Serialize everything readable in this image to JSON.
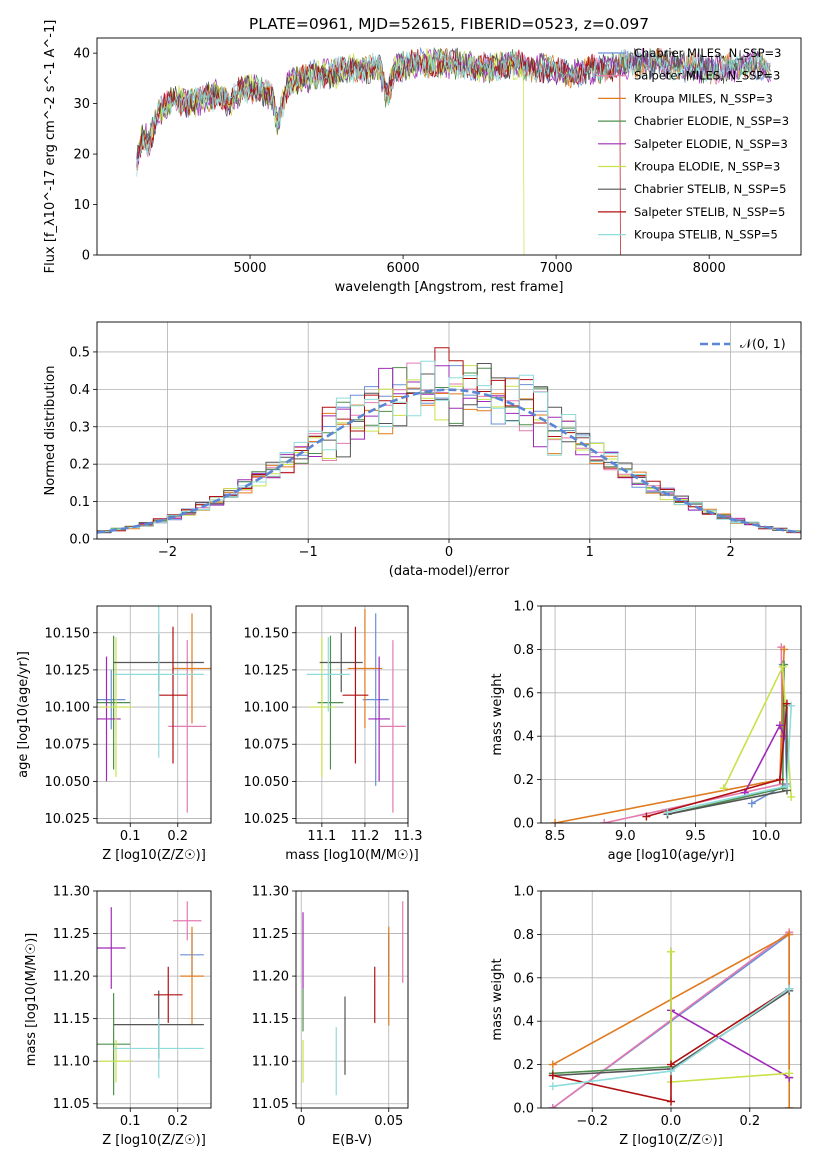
{
  "figure_title": "PLATE=0961, MJD=52615, FIBERID=0523, z=0.097",
  "series_colors": {
    "Chabrier MILES": "#6b8fd6",
    "Salpeter MILES": "#e57ab0",
    "Kroupa MILES": "#e07b1f",
    "Chabrier ELODIE": "#4f8f4f",
    "Salpeter ELODIE": "#a02ab8",
    "Kroupa ELODIE": "#c9e24a",
    "Chabrier STELIB": "#555555",
    "Salpeter STELIB": "#b01010",
    "Kroupa STELIB": "#8fdcdc"
  },
  "chart_data": [
    {
      "id": "spectrum",
      "type": "line",
      "title": "PLATE=0961, MJD=52615, FIBERID=0523, z=0.097",
      "xlabel": "wavelength [Angstrom, rest frame]",
      "ylabel": "Flux [f_λ10^-17 erg cm^-2 s^-1 A^-1]",
      "xlim": [
        4000,
        8600
      ],
      "ylim": [
        0,
        43
      ],
      "xticks": [
        5000,
        6000,
        7000,
        8000
      ],
      "yticks": [
        0,
        10,
        20,
        30,
        40
      ],
      "grid": false,
      "legend_position": "upper right",
      "legend": [
        "Chabrier MILES, N_SSP=3",
        "Salpeter MILES, N_SSP=3",
        "Kroupa MILES, N_SSP=3",
        "Chabrier ELODIE, N_SSP=3",
        "Salpeter ELODIE, N_SSP=3",
        "Kroupa ELODIE, N_SSP=3",
        "Chabrier STELIB, N_SSP=5",
        "Salpeter STELIB, N_SSP=5",
        "Kroupa STELIB, N_SSP=5"
      ],
      "continuum_points": [
        [
          4260,
          18
        ],
        [
          4300,
          24
        ],
        [
          4340,
          22
        ],
        [
          4400,
          28
        ],
        [
          4500,
          31
        ],
        [
          4600,
          30
        ],
        [
          4700,
          31
        ],
        [
          4800,
          32
        ],
        [
          4862,
          30
        ],
        [
          4950,
          33
        ],
        [
          5050,
          33
        ],
        [
          5150,
          31
        ],
        [
          5175,
          26
        ],
        [
          5250,
          34
        ],
        [
          5350,
          35
        ],
        [
          5450,
          36
        ],
        [
          5550,
          36
        ],
        [
          5650,
          37
        ],
        [
          5750,
          37
        ],
        [
          5850,
          37
        ],
        [
          5893,
          31
        ],
        [
          5950,
          37
        ],
        [
          6100,
          38
        ],
        [
          6300,
          38
        ],
        [
          6563,
          37
        ],
        [
          6700,
          38
        ],
        [
          6900,
          37
        ],
        [
          7100,
          36
        ],
        [
          7300,
          37
        ],
        [
          7500,
          38
        ],
        [
          7700,
          38
        ],
        [
          7900,
          37
        ],
        [
          8100,
          37
        ],
        [
          8300,
          38
        ],
        [
          8400,
          36
        ]
      ],
      "dropouts": [
        {
          "series": "Kroupa ELODIE",
          "x": 6790
        },
        {
          "series": "Salpeter STELIB",
          "x": 7420
        }
      ]
    },
    {
      "id": "residuals",
      "type": "histogram",
      "xlabel": "(data-model)/error",
      "ylabel": "Normed distribution",
      "xlim": [
        -2.5,
        2.5
      ],
      "ylim": [
        0,
        0.58
      ],
      "xticks": [
        -2,
        -1,
        0,
        1,
        2
      ],
      "yticks": [
        0.0,
        0.1,
        0.2,
        0.3,
        0.4,
        0.5
      ],
      "grid": true,
      "legend_position": "upper right",
      "legend": [
        "𝒩(0, 1)"
      ],
      "bin_width": 0.1,
      "reference": "gaussian mean 0 sigma 1"
    },
    {
      "id": "age-vs-Z",
      "type": "errorbar",
      "xlabel": "Z [log10(Z/Z☉)]",
      "ylabel": "age [log10(age/yr)]",
      "xlim": [
        0.03,
        0.27
      ],
      "ylim": [
        10.022,
        10.168
      ],
      "xticks": [
        0.1,
        0.2
      ],
      "yticks": [
        10.025,
        10.05,
        10.075,
        10.1,
        10.125,
        10.15
      ],
      "grid": true,
      "points": [
        {
          "series": "Chabrier MILES",
          "x": 0.06,
          "y": 10.105,
          "xerr": 0.03,
          "yerr": 0.02
        },
        {
          "series": "Salpeter MILES",
          "x": 0.22,
          "y": 10.087,
          "xerr": 0.04,
          "yerr": 0.058
        },
        {
          "series": "Kroupa MILES",
          "x": 0.23,
          "y": 10.126,
          "xerr": 0.04,
          "yerr": 0.037
        },
        {
          "series": "Chabrier ELODIE",
          "x": 0.065,
          "y": 10.103,
          "xerr": 0.035,
          "yerr": 0.045
        },
        {
          "series": "Salpeter ELODIE",
          "x": 0.05,
          "y": 10.092,
          "xerr": 0.03,
          "yerr": 0.042
        },
        {
          "series": "Kroupa ELODIE",
          "x": 0.07,
          "y": 10.1,
          "xerr": 0.035,
          "yerr": 0.047
        },
        {
          "series": "Chabrier STELIB",
          "x": 0.16,
          "y": 10.13,
          "xerr": 0.095,
          "yerr": 0.019
        },
        {
          "series": "Salpeter STELIB",
          "x": 0.19,
          "y": 10.108,
          "xerr": 0.03,
          "yerr": 0.046
        },
        {
          "series": "Kroupa STELIB",
          "x": 0.16,
          "y": 10.122,
          "xerr": 0.095,
          "yerr": 0.056
        }
      ]
    },
    {
      "id": "age-vs-mass",
      "type": "errorbar",
      "xlabel": "mass [log10(M/M☉)]",
      "ylabel": "",
      "xlim": [
        11.04,
        11.3
      ],
      "ylim": [
        10.022,
        10.168
      ],
      "xticks": [
        11.1,
        11.2,
        11.3
      ],
      "yticks": [
        10.025,
        10.05,
        10.075,
        10.1,
        10.125,
        10.15
      ],
      "grid": true,
      "points": [
        {
          "series": "Chabrier MILES",
          "x": 11.225,
          "y": 10.105,
          "xerr": 0.03,
          "yerr": 0.058
        },
        {
          "series": "Salpeter MILES",
          "x": 11.265,
          "y": 10.087,
          "xerr": 0.03,
          "yerr": 0.058
        },
        {
          "series": "Kroupa MILES",
          "x": 11.2,
          "y": 10.126,
          "xerr": 0.04,
          "yerr": 0.04
        },
        {
          "series": "Chabrier ELODIE",
          "x": 11.12,
          "y": 10.103,
          "xerr": 0.03,
          "yerr": 0.045
        },
        {
          "series": "Salpeter ELODIE",
          "x": 11.233,
          "y": 10.092,
          "xerr": 0.025,
          "yerr": 0.042
        },
        {
          "series": "Kroupa ELODIE",
          "x": 11.1,
          "y": 10.1,
          "xerr": 0.03,
          "yerr": 0.047
        },
        {
          "series": "Chabrier STELIB",
          "x": 11.145,
          "y": 10.13,
          "xerr": 0.05,
          "yerr": 0.02
        },
        {
          "series": "Salpeter STELIB",
          "x": 11.178,
          "y": 10.108,
          "xerr": 0.03,
          "yerr": 0.046
        },
        {
          "series": "Kroupa STELIB",
          "x": 11.115,
          "y": 10.122,
          "xerr": 0.05,
          "yerr": 0.025
        }
      ]
    },
    {
      "id": "weight-vs-age",
      "type": "line",
      "xlabel": "age [log10(age/yr)]",
      "ylabel": "mass weight",
      "xlim": [
        8.4,
        10.25
      ],
      "ylim": [
        0,
        1
      ],
      "xticks": [
        8.5,
        9.0,
        9.5,
        10.0
      ],
      "yticks": [
        0.0,
        0.2,
        0.4,
        0.6,
        0.8,
        1.0
      ],
      "grid": true,
      "series": [
        {
          "name": "Chabrier MILES",
          "points": [
            [
              9.9,
              0.09
            ],
            [
              10.15,
              0.18
            ],
            [
              10.12,
              0.73
            ]
          ]
        },
        {
          "name": "Salpeter MILES",
          "points": [
            [
              8.85,
              0.0
            ],
            [
              10.12,
              0.18
            ],
            [
              10.11,
              0.81
            ]
          ]
        },
        {
          "name": "Kroupa MILES",
          "points": [
            [
              8.5,
              0.0
            ],
            [
              10.1,
              0.2
            ],
            [
              10.13,
              0.8
            ]
          ]
        },
        {
          "name": "Chabrier ELODIE",
          "points": [
            [
              9.3,
              0.04
            ],
            [
              10.12,
              0.16
            ],
            [
              10.13,
              0.73
            ]
          ]
        },
        {
          "name": "Salpeter ELODIE",
          "points": [
            [
              9.85,
              0.14
            ],
            [
              10.1,
              0.45
            ],
            [
              10.13,
              0.4
            ]
          ]
        },
        {
          "name": "Kroupa ELODIE",
          "points": [
            [
              9.7,
              0.16
            ],
            [
              10.12,
              0.72
            ],
            [
              10.18,
              0.12
            ]
          ]
        },
        {
          "name": "Chabrier STELIB",
          "points": [
            [
              9.3,
              0.04
            ],
            [
              10.15,
              0.15
            ],
            [
              10.15,
              0.54
            ]
          ]
        },
        {
          "name": "Salpeter STELIB",
          "points": [
            [
              9.15,
              0.03
            ],
            [
              10.1,
              0.2
            ],
            [
              10.15,
              0.55
            ]
          ]
        },
        {
          "name": "Kroupa STELIB",
          "points": [
            [
              9.3,
              0.05
            ],
            [
              10.15,
              0.17
            ],
            [
              10.18,
              0.54
            ]
          ]
        }
      ]
    },
    {
      "id": "mass-vs-Z",
      "type": "errorbar",
      "xlabel": "Z [log10(Z/Z☉)]",
      "ylabel": "mass [log10(M/M☉)]",
      "xlim": [
        0.03,
        0.27
      ],
      "ylim": [
        11.045,
        11.3
      ],
      "xticks": [
        0.1,
        0.2
      ],
      "yticks": [
        11.05,
        11.1,
        11.15,
        11.2,
        11.25,
        11.3
      ],
      "grid": true,
      "points": [
        {
          "series": "Chabrier MILES",
          "x": 0.23,
          "y": 11.225,
          "xerr": 0.025,
          "yerr": 0.025
        },
        {
          "series": "Salpeter MILES",
          "x": 0.22,
          "y": 11.265,
          "xerr": 0.03,
          "yerr": 0.023
        },
        {
          "series": "Kroupa MILES",
          "x": 0.23,
          "y": 11.2,
          "xerr": 0.025,
          "yerr": 0.058
        },
        {
          "series": "Chabrier ELODIE",
          "x": 0.065,
          "y": 11.12,
          "xerr": 0.035,
          "yerr": 0.06
        },
        {
          "series": "Salpeter ELODIE",
          "x": 0.06,
          "y": 11.233,
          "xerr": 0.03,
          "yerr": 0.048
        },
        {
          "series": "Kroupa ELODIE",
          "x": 0.07,
          "y": 11.1,
          "xerr": 0.035,
          "yerr": 0.025
        },
        {
          "series": "Chabrier STELIB",
          "x": 0.16,
          "y": 11.143,
          "xerr": 0.095,
          "yerr": 0.04
        },
        {
          "series": "Salpeter STELIB",
          "x": 0.18,
          "y": 11.178,
          "xerr": 0.03,
          "yerr": 0.033
        },
        {
          "series": "Kroupa STELIB",
          "x": 0.16,
          "y": 11.115,
          "xerr": 0.095,
          "yerr": 0.035
        }
      ]
    },
    {
      "id": "mass-vs-EBV",
      "type": "errorbar",
      "xlabel": "E(B-V)",
      "ylabel": "",
      "xlim": [
        -0.003,
        0.061
      ],
      "ylim": [
        11.045,
        11.3
      ],
      "xticks": [
        0.0,
        0.05
      ],
      "yticks": [
        11.05,
        11.1,
        11.15,
        11.2,
        11.25,
        11.3
      ],
      "grid": true,
      "points": [
        {
          "series": "Chabrier MILES",
          "x": 0.05,
          "y": 11.225,
          "xerr": 0,
          "yerr": 0.025
        },
        {
          "series": "Salpeter MILES",
          "x": 0.058,
          "y": 11.24,
          "xerr": 0,
          "yerr": 0.048
        },
        {
          "series": "Kroupa MILES",
          "x": 0.05,
          "y": 11.2,
          "xerr": 0,
          "yerr": 0.058
        },
        {
          "series": "Chabrier ELODIE",
          "x": 0.001,
          "y": 11.16,
          "xerr": 0,
          "yerr": 0.025
        },
        {
          "series": "Salpeter ELODIE",
          "x": 0.001,
          "y": 11.23,
          "xerr": 0,
          "yerr": 0.045
        },
        {
          "series": "Kroupa ELODIE",
          "x": 0.001,
          "y": 11.1,
          "xerr": 0,
          "yerr": 0.025
        },
        {
          "series": "Chabrier STELIB",
          "x": 0.025,
          "y": 11.13,
          "xerr": 0,
          "yerr": 0.046
        },
        {
          "series": "Salpeter STELIB",
          "x": 0.042,
          "y": 11.178,
          "xerr": 0,
          "yerr": 0.033
        },
        {
          "series": "Kroupa STELIB",
          "x": 0.02,
          "y": 11.1,
          "xerr": 0,
          "yerr": 0.04
        }
      ]
    },
    {
      "id": "weight-vs-Z",
      "type": "line",
      "xlabel": "Z [log10(Z/Z☉)]",
      "ylabel": "mass weight",
      "xlim": [
        -0.33,
        0.33
      ],
      "ylim": [
        0,
        1
      ],
      "xticks": [
        -0.2,
        0.0,
        0.2
      ],
      "yticks": [
        0.0,
        0.2,
        0.4,
        0.6,
        0.8,
        1.0
      ],
      "grid": true,
      "series": [
        {
          "name": "Chabrier MILES",
          "points": [
            [
              -0.3,
              0.0
            ],
            [
              0.3,
              0.8
            ],
            [
              0.3,
              0.55
            ]
          ]
        },
        {
          "name": "Salpeter MILES",
          "points": [
            [
              -0.3,
              0.0
            ],
            [
              0.3,
              0.81
            ],
            [
              0.3,
              0.14
            ]
          ]
        },
        {
          "name": "Kroupa MILES",
          "points": [
            [
              -0.3,
              0.2
            ],
            [
              0.3,
              0.8
            ],
            [
              0.3,
              0.0
            ]
          ]
        },
        {
          "name": "Chabrier ELODIE",
          "points": [
            [
              -0.3,
              0.16
            ],
            [
              0.0,
              0.19
            ],
            [
              0.0,
              0.72
            ]
          ]
        },
        {
          "name": "Salpeter ELODIE",
          "points": [
            [
              0.0,
              0.45
            ],
            [
              0.3,
              0.14
            ]
          ]
        },
        {
          "name": "Kroupa ELODIE",
          "points": [
            [
              0.0,
              0.72
            ],
            [
              0.0,
              0.12
            ],
            [
              0.3,
              0.16
            ]
          ]
        },
        {
          "name": "Chabrier STELIB",
          "points": [
            [
              -0.3,
              0.15
            ],
            [
              0.0,
              0.18
            ],
            [
              0.3,
              0.54
            ]
          ]
        },
        {
          "name": "Salpeter STELIB",
          "points": [
            [
              -0.3,
              0.15
            ],
            [
              0.0,
              0.03
            ],
            [
              0.0,
              0.2
            ],
            [
              0.3,
              0.55
            ]
          ]
        },
        {
          "name": "Kroupa STELIB",
          "points": [
            [
              -0.3,
              0.1
            ],
            [
              0.0,
              0.17
            ],
            [
              0.3,
              0.55
            ]
          ]
        }
      ]
    }
  ]
}
